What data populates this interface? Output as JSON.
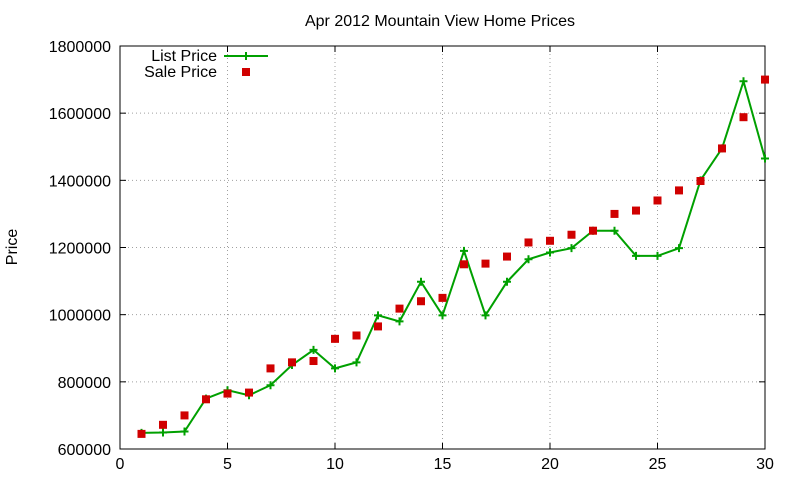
{
  "chart_data": {
    "type": "line",
    "title": "Apr 2012 Mountain View Home Prices",
    "xlabel": "",
    "ylabel": "Price",
    "xlim": [
      0,
      30
    ],
    "ylim": [
      600000,
      1800000
    ],
    "x_ticks": [
      0,
      5,
      10,
      15,
      20,
      25,
      30
    ],
    "y_ticks": [
      600000,
      800000,
      1000000,
      1200000,
      1400000,
      1600000,
      1800000
    ],
    "grid": true,
    "legend_position": "top-left",
    "x": [
      1,
      2,
      3,
      4,
      5,
      6,
      7,
      8,
      9,
      10,
      11,
      12,
      13,
      14,
      15,
      16,
      17,
      18,
      19,
      20,
      21,
      22,
      23,
      24,
      25,
      26,
      27,
      28,
      29,
      30
    ],
    "series": [
      {
        "name": "List Price",
        "style": "line-with-plus-markers",
        "color": "#00a000",
        "values": [
          648000,
          649000,
          652000,
          750000,
          775000,
          760000,
          790000,
          850000,
          895000,
          840000,
          858000,
          998000,
          980000,
          1098000,
          998000,
          1190000,
          998000,
          1098000,
          1165000,
          1185000,
          1198000,
          1250000,
          1250000,
          1175000,
          1175000,
          1198000,
          1400000,
          1495000,
          1695000,
          1465000
        ]
      },
      {
        "name": "Sale Price",
        "style": "square-markers",
        "color": "#d00000",
        "values": [
          645000,
          672000,
          700000,
          748000,
          765000,
          768000,
          840000,
          858000,
          862000,
          928000,
          938000,
          965000,
          1018000,
          1040000,
          1050000,
          1150000,
          1152000,
          1173000,
          1215000,
          1220000,
          1238000,
          1250000,
          1300000,
          1310000,
          1340000,
          1370000,
          1398000,
          1495000,
          1588000,
          1700000
        ]
      }
    ]
  }
}
